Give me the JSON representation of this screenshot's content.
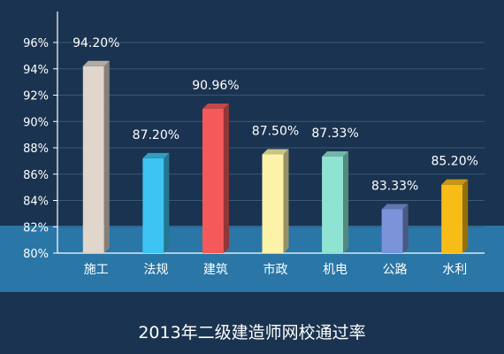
{
  "chart_data": {
    "type": "bar",
    "title": "2013年二级建造师网校通过率",
    "xlabel": "",
    "ylabel": "",
    "ylim": [
      80,
      96
    ],
    "yticks": [
      "80%",
      "82%",
      "84%",
      "86%",
      "88%",
      "90%",
      "92%",
      "94%",
      "96%"
    ],
    "grid": true,
    "categories": [
      "施工",
      "法规",
      "建筑",
      "市政",
      "机电",
      "公路",
      "水利"
    ],
    "values": [
      94.2,
      87.2,
      90.96,
      87.5,
      87.33,
      83.33,
      85.2
    ],
    "value_labels": [
      "94.20%",
      "87.20%",
      "90.96%",
      "87.50%",
      "87.33%",
      "83.33%",
      "85.20%"
    ],
    "colors": [
      "#e0d6cb",
      "#3dc4f2",
      "#f45a5a",
      "#fcf3a8",
      "#8ee3d3",
      "#7b93d9",
      "#f7bd16"
    ],
    "background": "#1a3350",
    "band_color": "#2a76a6"
  }
}
